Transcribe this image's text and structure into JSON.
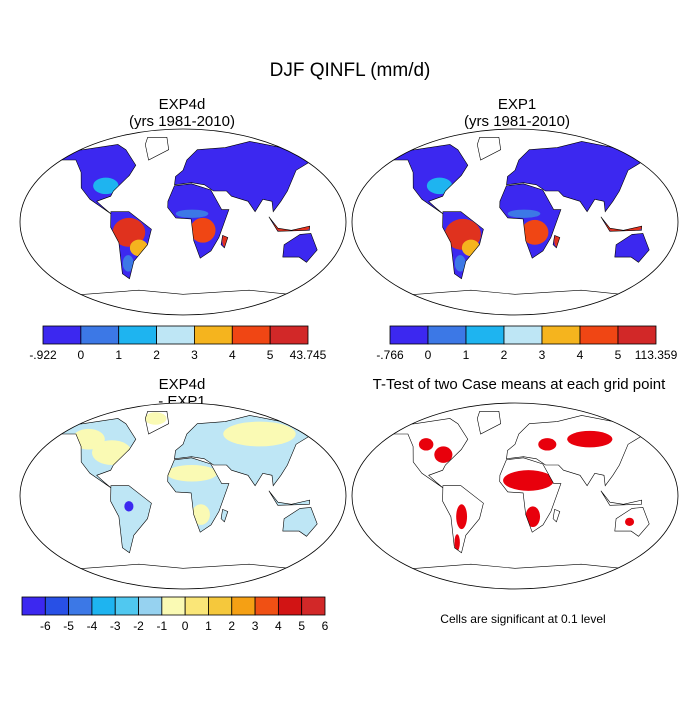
{
  "title": "DJF QINFL (mm/d)",
  "panels": [
    {
      "title": "EXP4d",
      "subtitle": "(yrs 1981-2010)"
    },
    {
      "title": "EXP1",
      "subtitle": "(yrs 1981-2010)"
    },
    {
      "title": "EXP4d",
      "subtitle": "- EXP1"
    },
    {
      "title": "T-Test of two Case means at each grid point"
    }
  ],
  "colorbars": [
    {
      "colors": [
        "#3c28f0",
        "#3c78e6",
        "#1eb4f0",
        "#bee6f5",
        "#f5b41e",
        "#f04614",
        "#d22828"
      ],
      "labels": [
        "-.922",
        "0",
        "1",
        "2",
        "3",
        "4",
        "5",
        "43.745"
      ]
    },
    {
      "colors": [
        "#3c28f0",
        "#3c78e6",
        "#1eb4f0",
        "#bee6f5",
        "#f5b41e",
        "#f04614",
        "#d22828"
      ],
      "labels": [
        "-.766",
        "0",
        "1",
        "2",
        "3",
        "4",
        "5",
        "113.359"
      ]
    },
    {
      "colors": [
        "#3c28f0",
        "#2850e6",
        "#3c78e6",
        "#1eb4f0",
        "#50c8f0",
        "#96d2f0",
        "#fafab4",
        "#fae678",
        "#f5c83c",
        "#f5a014",
        "#f05014",
        "#d21414",
        "#d22828"
      ],
      "labels": [
        "-6",
        "-5",
        "-4",
        "-3",
        "-2",
        "-1",
        "0",
        "1",
        "2",
        "3",
        "4",
        "5",
        "6"
      ]
    }
  ],
  "footnote": "Cells are significant at 0.1 level"
}
